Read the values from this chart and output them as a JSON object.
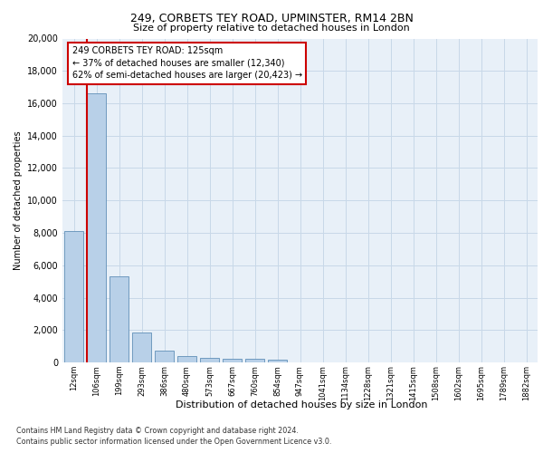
{
  "title1": "249, CORBETS TEY ROAD, UPMINSTER, RM14 2BN",
  "title2": "Size of property relative to detached houses in London",
  "xlabel": "Distribution of detached houses by size in London",
  "ylabel": "Number of detached properties",
  "categories": [
    "12sqm",
    "106sqm",
    "199sqm",
    "293sqm",
    "386sqm",
    "480sqm",
    "573sqm",
    "667sqm",
    "760sqm",
    "854sqm",
    "947sqm",
    "1041sqm",
    "1134sqm",
    "1228sqm",
    "1321sqm",
    "1415sqm",
    "1508sqm",
    "1602sqm",
    "1695sqm",
    "1789sqm",
    "1882sqm"
  ],
  "values": [
    8100,
    16600,
    5300,
    1850,
    700,
    380,
    290,
    235,
    200,
    150,
    0,
    0,
    0,
    0,
    0,
    0,
    0,
    0,
    0,
    0,
    0
  ],
  "bar_color": "#b8d0e8",
  "bar_edge_color": "#6090b8",
  "highlight_line_color": "#cc0000",
  "annotation_line1": "249 CORBETS TEY ROAD: 125sqm",
  "annotation_line2": "← 37% of detached houses are smaller (12,340)",
  "annotation_line3": "62% of semi-detached houses are larger (20,423) →",
  "annotation_box_color": "#ffffff",
  "annotation_box_edge": "#cc0000",
  "ylim": [
    0,
    20000
  ],
  "yticks": [
    0,
    2000,
    4000,
    6000,
    8000,
    10000,
    12000,
    14000,
    16000,
    18000,
    20000
  ],
  "footer1": "Contains HM Land Registry data © Crown copyright and database right 2024.",
  "footer2": "Contains public sector information licensed under the Open Government Licence v3.0.",
  "grid_color": "#c8d8e8",
  "bg_color": "#e8f0f8",
  "fig_bg": "#ffffff",
  "title1_fontsize": 9,
  "title2_fontsize": 8,
  "ylabel_fontsize": 7,
  "xlabel_fontsize": 8,
  "tick_fontsize": 7,
  "xtick_fontsize": 6
}
